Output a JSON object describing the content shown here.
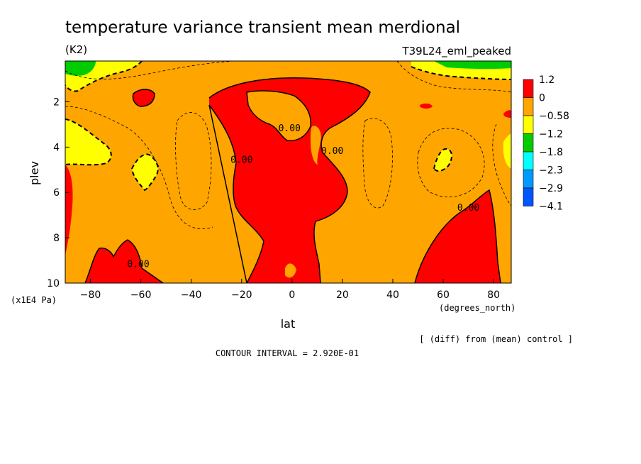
{
  "chart_data": {
    "type": "heatmap",
    "title": "temperature variance transient mean merdional",
    "units": "(K2)",
    "run_label": "T39L24_eml_peaked",
    "xlabel": "lat",
    "x_units": "(degrees_north)",
    "ylabel": "plev",
    "y_units": "(x1E4 Pa)",
    "xlim": [
      -90,
      87
    ],
    "ylim": [
      10,
      0.2
    ],
    "x_ticks": [
      {
        "v": -80,
        "label": "−80"
      },
      {
        "v": -60,
        "label": "−60"
      },
      {
        "v": -40,
        "label": "−40"
      },
      {
        "v": -20,
        "label": "−20"
      },
      {
        "v": 0,
        "label": "0"
      },
      {
        "v": 20,
        "label": "20"
      },
      {
        "v": 40,
        "label": "40"
      },
      {
        "v": 60,
        "label": "60"
      },
      {
        "v": 80,
        "label": "80"
      }
    ],
    "y_ticks": [
      {
        "v": 2,
        "label": "2"
      },
      {
        "v": 4,
        "label": "4"
      },
      {
        "v": 6,
        "label": "6"
      },
      {
        "v": 8,
        "label": "8"
      },
      {
        "v": 10,
        "label": "10"
      }
    ],
    "legend": {
      "placement": "right",
      "colors": [
        "#ff0000",
        "#ffa500",
        "#ffff00",
        "#00cc00",
        "#00ffff",
        "#0099ff",
        "#0055ff"
      ],
      "labels": [
        "1.2",
        "0",
        "−0.58",
        "−1.2",
        "−1.8",
        "−2.3",
        "−2.9",
        "−4.1"
      ]
    },
    "contour_labels": [
      {
        "lat": -1,
        "plev": 3.3,
        "text": "0.00"
      },
      {
        "lat": -20,
        "plev": 4.7,
        "text": "0.00"
      },
      {
        "lat": 16,
        "plev": 4.3,
        "text": "0.00"
      },
      {
        "lat": 70,
        "plev": 6.8,
        "text": "0.00"
      },
      {
        "lat": -61,
        "plev": 9.3,
        "text": "0.00"
      }
    ],
    "comparison_note": "[ (diff) from (mean) control ]",
    "contour_interval": "CONTOUR INTERVAL = 2.920E-01"
  }
}
